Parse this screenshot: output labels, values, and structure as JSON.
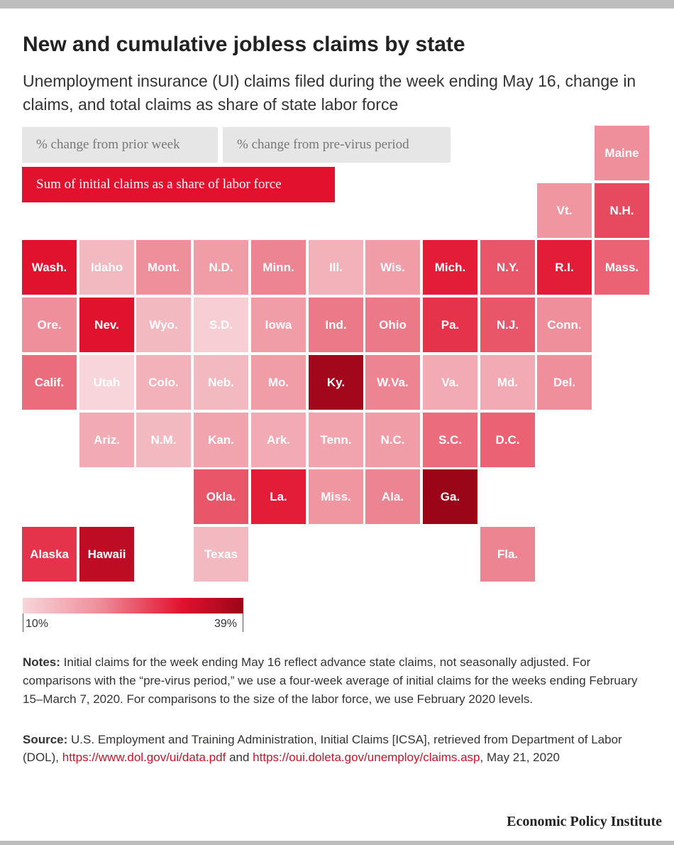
{
  "title": "New and cumulative jobless claims by state",
  "subtitle": "Unemployment insurance (UI) claims filed during the week ending May 16, change in claims, and total claims as share of state labor force",
  "toggles": {
    "prior_week": "% change from prior week",
    "pre_virus": "% change from pre-virus period",
    "labor_force": "Sum of initial claims as a share of labor force"
  },
  "legend": {
    "min_label": "10%",
    "max_label": "39%"
  },
  "colors": {
    "accent": "#e2122e",
    "low": "#f7d5da",
    "high": "#9a0618",
    "inactive_button": "#e6e6e6"
  },
  "chart_data": {
    "type": "heatmap",
    "measure": "Sum of initial claims as a share of labor force",
    "scale": {
      "min": 10,
      "max": 39,
      "unit": "%"
    },
    "states": [
      {
        "name": "Maine",
        "row": 0,
        "col": 10,
        "value": 20
      },
      {
        "name": "Vt.",
        "row": 1,
        "col": 9,
        "value": 19
      },
      {
        "name": "N.H.",
        "row": 1,
        "col": 10,
        "value": 26
      },
      {
        "name": "Wash.",
        "row": 2,
        "col": 0,
        "value": 31
      },
      {
        "name": "Idaho",
        "row": 2,
        "col": 1,
        "value": 14
      },
      {
        "name": "Mont.",
        "row": 2,
        "col": 2,
        "value": 20
      },
      {
        "name": "N.D.",
        "row": 2,
        "col": 3,
        "value": 18
      },
      {
        "name": "Minn.",
        "row": 2,
        "col": 4,
        "value": 21
      },
      {
        "name": "Ill.",
        "row": 2,
        "col": 5,
        "value": 15
      },
      {
        "name": "Wis.",
        "row": 2,
        "col": 6,
        "value": 18
      },
      {
        "name": "Mich.",
        "row": 2,
        "col": 7,
        "value": 30
      },
      {
        "name": "N.Y.",
        "row": 2,
        "col": 8,
        "value": 25
      },
      {
        "name": "R.I.",
        "row": 2,
        "col": 9,
        "value": 30
      },
      {
        "name": "Mass.",
        "row": 2,
        "col": 10,
        "value": 24
      },
      {
        "name": "Ore.",
        "row": 3,
        "col": 0,
        "value": 20
      },
      {
        "name": "Nev.",
        "row": 3,
        "col": 1,
        "value": 31
      },
      {
        "name": "Wyo.",
        "row": 3,
        "col": 2,
        "value": 14
      },
      {
        "name": "S.D.",
        "row": 3,
        "col": 3,
        "value": 11
      },
      {
        "name": "Iowa",
        "row": 3,
        "col": 4,
        "value": 18
      },
      {
        "name": "Ind.",
        "row": 3,
        "col": 5,
        "value": 22
      },
      {
        "name": "Ohio",
        "row": 3,
        "col": 6,
        "value": 22
      },
      {
        "name": "Pa.",
        "row": 3,
        "col": 7,
        "value": 28
      },
      {
        "name": "N.J.",
        "row": 3,
        "col": 8,
        "value": 25
      },
      {
        "name": "Conn.",
        "row": 3,
        "col": 9,
        "value": 20
      },
      {
        "name": "Calif.",
        "row": 4,
        "col": 0,
        "value": 23
      },
      {
        "name": "Utah",
        "row": 4,
        "col": 1,
        "value": 10
      },
      {
        "name": "Colo.",
        "row": 4,
        "col": 2,
        "value": 15
      },
      {
        "name": "Neb.",
        "row": 4,
        "col": 3,
        "value": 14
      },
      {
        "name": "Mo.",
        "row": 4,
        "col": 4,
        "value": 18
      },
      {
        "name": "Ky.",
        "row": 4,
        "col": 5,
        "value": 38
      },
      {
        "name": "W.Va.",
        "row": 4,
        "col": 6,
        "value": 21
      },
      {
        "name": "Va.",
        "row": 4,
        "col": 7,
        "value": 16
      },
      {
        "name": "Md.",
        "row": 4,
        "col": 8,
        "value": 16
      },
      {
        "name": "Del.",
        "row": 4,
        "col": 9,
        "value": 20
      },
      {
        "name": "Ariz.",
        "row": 5,
        "col": 1,
        "value": 16
      },
      {
        "name": "N.M.",
        "row": 5,
        "col": 2,
        "value": 14
      },
      {
        "name": "Kan.",
        "row": 5,
        "col": 3,
        "value": 17
      },
      {
        "name": "Ark.",
        "row": 5,
        "col": 4,
        "value": 16
      },
      {
        "name": "Tenn.",
        "row": 5,
        "col": 5,
        "value": 17
      },
      {
        "name": "N.C.",
        "row": 5,
        "col": 6,
        "value": 18
      },
      {
        "name": "S.C.",
        "row": 5,
        "col": 7,
        "value": 23
      },
      {
        "name": "D.C.",
        "row": 5,
        "col": 8,
        "value": 24
      },
      {
        "name": "Okla.",
        "row": 6,
        "col": 3,
        "value": 25
      },
      {
        "name": "La.",
        "row": 6,
        "col": 4,
        "value": 30
      },
      {
        "name": "Miss.",
        "row": 6,
        "col": 5,
        "value": 19
      },
      {
        "name": "Ala.",
        "row": 6,
        "col": 6,
        "value": 21
      },
      {
        "name": "Ga.",
        "row": 6,
        "col": 7,
        "value": 39
      },
      {
        "name": "Alaska",
        "row": 7,
        "col": 0,
        "value": 28
      },
      {
        "name": "Hawaii",
        "row": 7,
        "col": 1,
        "value": 35
      },
      {
        "name": "Texas",
        "row": 7,
        "col": 3,
        "value": 14
      },
      {
        "name": "Fla.",
        "row": 7,
        "col": 8,
        "value": 21
      }
    ]
  },
  "notes": {
    "label": "Notes:",
    "text": "Initial claims for the week ending May 16 reflect advance state claims, not seasonally adjusted. For comparisons with the “pre-virus period,” we use a four-week average of initial claims for the weeks ending February 15–March 7, 2020. For comparisons to the size of the labor force, we use February 2020 levels."
  },
  "source": {
    "label": "Source:",
    "text_1": "U.S. Employment and Training Administration, Initial Claims [ICSA], retrieved from Department of Labor",
    "text_2": "(DOL),",
    "link_1": "https://www.dol.gov/ui/data.pdf",
    "and": "and",
    "link_2": "https://oui.doleta.gov/unemploy/claims.asp",
    "date": ", May 21, 2020"
  },
  "organization": "Economic Policy Institute"
}
